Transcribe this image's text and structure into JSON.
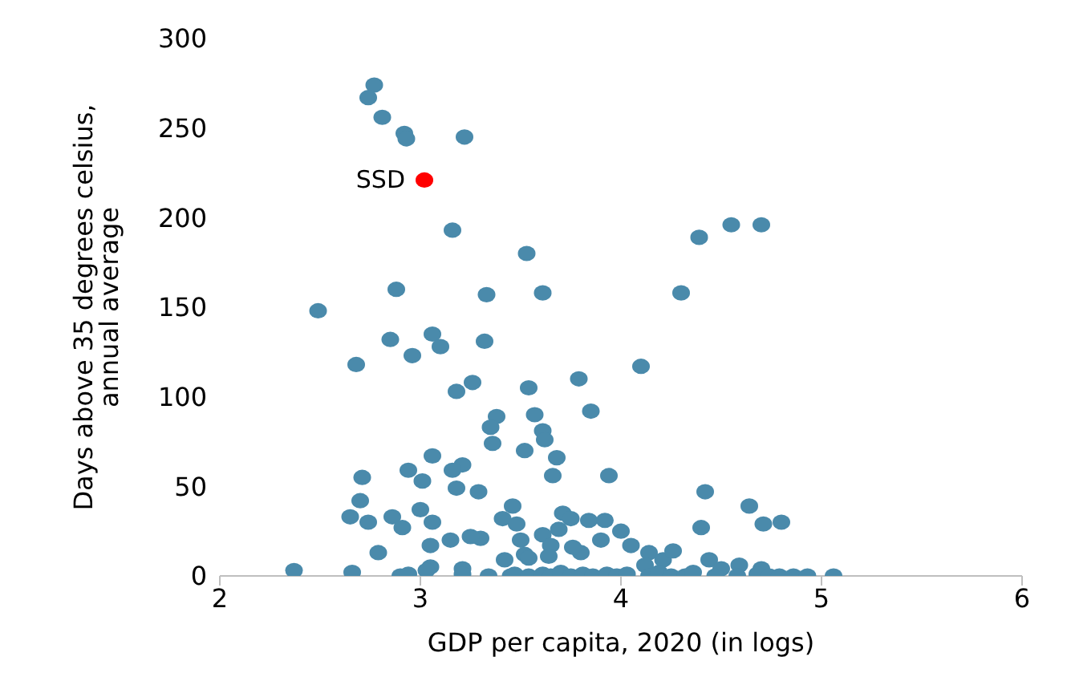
{
  "chart_data": {
    "type": "scatter",
    "xlabel": "GDP per capita, 2020 (in logs)",
    "ylabel": "Days above 35 degrees celsius, annual average",
    "xlim": [
      2,
      6
    ],
    "xticks": [
      2,
      3,
      4,
      5,
      6
    ],
    "ylim": [
      0,
      300
    ],
    "yticks": [
      0,
      50,
      100,
      150,
      200,
      250,
      300
    ],
    "grid": false,
    "legend": false,
    "marker": "circle",
    "series": [
      {
        "color": "#4a8aab",
        "x": [
          2.77,
          2.74,
          2.81,
          2.92,
          2.93,
          3.22,
          3.16,
          3.53,
          2.88,
          3.33,
          3.61,
          4.39,
          4.55,
          4.7,
          4.3,
          2.49,
          4.1,
          2.85,
          3.06,
          3.32,
          3.1,
          2.68,
          2.96,
          3.26,
          3.18,
          3.54,
          3.79,
          3.85,
          3.57,
          3.38,
          3.35,
          3.61,
          3.62,
          3.36,
          3.68,
          3.06,
          3.52,
          2.94,
          3.21,
          3.16,
          3.18,
          3.29,
          3.01,
          2.71,
          2.7,
          3.0,
          2.86,
          2.65,
          2.74,
          2.91,
          3.06,
          3.15,
          3.05,
          2.79,
          3.41,
          3.46,
          3.3,
          3.25,
          3.48,
          3.5,
          3.52,
          3.66,
          3.71,
          3.75,
          3.84,
          3.92,
          4.0,
          3.9,
          3.69,
          3.61,
          3.65,
          3.94,
          4.42,
          4.4,
          4.64,
          4.71,
          4.8,
          4.05,
          4.14,
          4.21,
          4.26,
          4.44,
          4.12,
          4.59,
          4.7,
          4.5,
          3.8,
          3.76,
          3.64,
          3.42,
          3.21,
          3.05,
          3.54,
          2.37,
          2.66,
          2.9,
          2.94,
          3.03,
          3.21,
          3.34,
          3.45,
          3.47,
          3.54,
          3.61,
          3.65,
          3.7,
          3.75,
          3.81,
          3.86,
          3.93,
          3.98,
          4.03,
          4.14,
          4.19,
          4.25,
          4.32,
          4.36,
          4.47,
          4.58,
          4.68,
          4.74,
          4.79,
          4.86,
          4.93,
          5.06
        ],
        "values": [
          274,
          267,
          256,
          247,
          244,
          245,
          193,
          180,
          160,
          157,
          158,
          189,
          196,
          196,
          158,
          148,
          117,
          132,
          135,
          131,
          128,
          118,
          123,
          108,
          103,
          105,
          110,
          92,
          90,
          89,
          83,
          81,
          76,
          74,
          66,
          67,
          70,
          59,
          62,
          59,
          49,
          47,
          53,
          55,
          42,
          37,
          33,
          33,
          30,
          27,
          30,
          20,
          17,
          13,
          32,
          39,
          21,
          22,
          29,
          20,
          12,
          56,
          35,
          32,
          31,
          31,
          25,
          20,
          26,
          23,
          17,
          56,
          47,
          27,
          39,
          29,
          30,
          17,
          13,
          9,
          14,
          9,
          6,
          6,
          4,
          4,
          13,
          16,
          11,
          9,
          4,
          5,
          10,
          3,
          2,
          0,
          1,
          3,
          1,
          0,
          0,
          1,
          0,
          1,
          0,
          2,
          0,
          1,
          0,
          1,
          0,
          1,
          0,
          2,
          0,
          0,
          2,
          0,
          0,
          1,
          0,
          0,
          0,
          0,
          0
        ]
      },
      {
        "name": "SSD",
        "color": "#ff0000",
        "x": [
          3.02
        ],
        "values": [
          221
        ]
      }
    ]
  }
}
